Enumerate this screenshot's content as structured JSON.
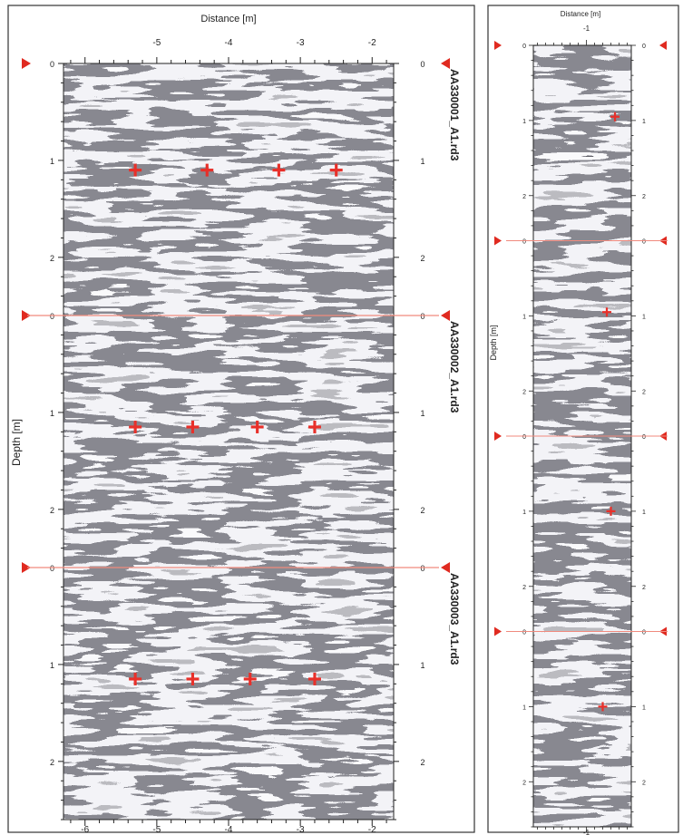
{
  "chart_data": [
    {
      "type": "heatmap",
      "panel": "left",
      "xlabel": "Distance [m]",
      "ylabel": "Depth [m]",
      "x_ticks": [
        "-5",
        "-4",
        "-3",
        "-2"
      ],
      "x_ticks_bottom": [
        "-6",
        "-5",
        "-4",
        "-3",
        "-2"
      ],
      "xlim": [
        -6.3,
        -1.7
      ],
      "x_top_label_values": [
        -5,
        -4,
        -3,
        -2
      ],
      "x_bottom_label_values": [
        -6,
        -5,
        -4,
        -3,
        -2
      ],
      "ylim": [
        0,
        2.6
      ],
      "y_ticks": [
        "0",
        "1",
        "2"
      ],
      "y_tick_values": [
        0,
        1,
        2
      ],
      "sections": [
        {
          "name": "AA330001_A1.rd3",
          "markers": [
            {
              "x": -5.3,
              "y": 1.1
            },
            {
              "x": -4.3,
              "y": 1.1
            },
            {
              "x": -3.3,
              "y": 1.1
            },
            {
              "x": -2.5,
              "y": 1.1
            }
          ]
        },
        {
          "name": "AA330002_A1.rd3",
          "markers": [
            {
              "x": -5.3,
              "y": 1.15
            },
            {
              "x": -4.5,
              "y": 1.15
            },
            {
              "x": -3.6,
              "y": 1.15
            },
            {
              "x": -2.8,
              "y": 1.15
            }
          ]
        },
        {
          "name": "AA330003_A1.rd3",
          "markers": [
            {
              "x": -5.3,
              "y": 1.15
            },
            {
              "x": -4.5,
              "y": 1.15
            },
            {
              "x": -3.7,
              "y": 1.15
            },
            {
              "x": -2.8,
              "y": 1.15
            }
          ]
        }
      ],
      "colors": {
        "marker": "#e8302a",
        "separator": "#f08a7e",
        "start_marker": "#e02a20"
      }
    },
    {
      "type": "heatmap",
      "panel": "right",
      "xlabel": "Distance [m]",
      "ylabel": "Depth [m]",
      "x_ticks": [
        "-1"
      ],
      "xlim": [
        -1.65,
        -0.45
      ],
      "x_label_values": [
        -1
      ],
      "ylim": [
        0,
        2.6
      ],
      "y_ticks": [
        "0",
        "1",
        "2"
      ],
      "y_tick_values": [
        0,
        1,
        2
      ],
      "sections": [
        {
          "markers": [
            {
              "x": -0.65,
              "y": 0.95
            }
          ]
        },
        {
          "markers": [
            {
              "x": -0.75,
              "y": 0.95
            }
          ]
        },
        {
          "markers": [
            {
              "x": -0.7,
              "y": 1.0
            }
          ]
        },
        {
          "markers": [
            {
              "x": -0.8,
              "y": 1.0
            }
          ]
        }
      ],
      "colors": {
        "marker": "#e8302a",
        "separator": "#f08a7e",
        "start_marker": "#e02a20"
      }
    }
  ]
}
